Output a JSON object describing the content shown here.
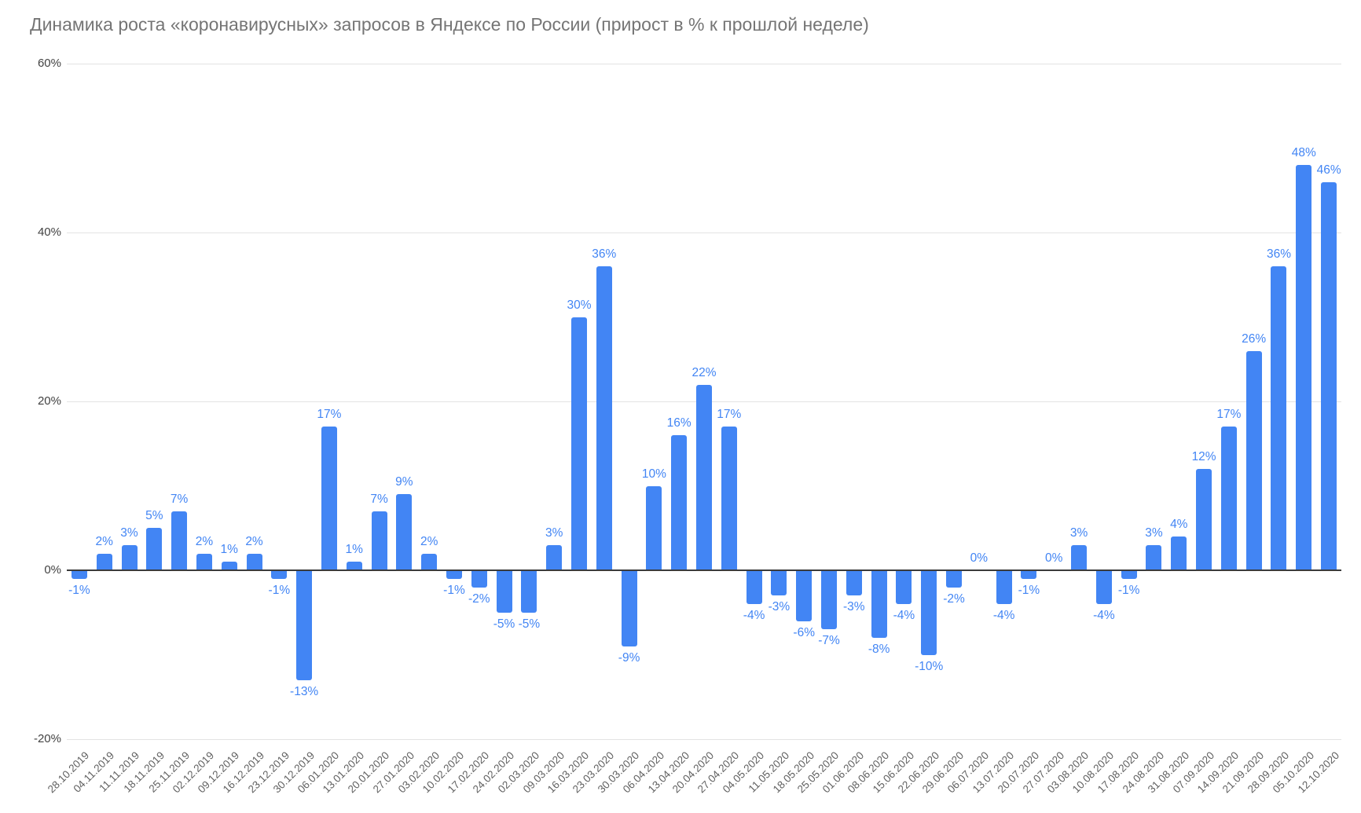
{
  "chart_data": {
    "type": "bar",
    "title": "Динамика роста «коронавирусных» запросов в Яндексе по России (прирост в % к прошлой неделе)",
    "categories": [
      "28.10.2019",
      "04.11.2019",
      "11.11.2019",
      "18.11.2019",
      "25.11.2019",
      "02.12.2019",
      "09.12.2019",
      "16.12.2019",
      "23.12.2019",
      "30.12.2019",
      "06.01.2020",
      "13.01.2020",
      "20.01.2020",
      "27.01.2020",
      "03.02.2020",
      "10.02.2020",
      "17.02.2020",
      "24.02.2020",
      "02.03.2020",
      "09.03.2020",
      "16.03.2020",
      "23.03.2020",
      "30.03.2020",
      "06.04.2020",
      "13.04.2020",
      "20.04.2020",
      "27.04.2020",
      "04.05.2020",
      "11.05.2020",
      "18.05.2020",
      "25.05.2020",
      "01.06.2020",
      "08.06.2020",
      "15.06.2020",
      "22.06.2020",
      "29.06.2020",
      "06.07.2020",
      "13.07.2020",
      "20.07.2020",
      "27.07.2020",
      "03.08.2020",
      "10.08.2020",
      "17.08.2020",
      "24.08.2020",
      "31.08.2020",
      "07.09.2020",
      "14.09.2020",
      "21.09.2020",
      "28.09.2020",
      "05.10.2020",
      "12.10.2020"
    ],
    "values": [
      -1,
      2,
      3,
      5,
      7,
      2,
      1,
      2,
      -1,
      -13,
      17,
      1,
      7,
      9,
      2,
      -1,
      -2,
      -5,
      -5,
      3,
      30,
      36,
      -9,
      10,
      16,
      22,
      17,
      -4,
      -3,
      -6,
      -7,
      -3,
      -8,
      -4,
      -10,
      -2,
      0,
      -4,
      -1,
      0,
      3,
      -4,
      -1,
      3,
      4,
      12,
      17,
      26,
      36,
      48,
      46
    ],
    "labels": [
      "-1%",
      "2%",
      "3%",
      "5%",
      "7%",
      "2%",
      "1%",
      "2%",
      "-1%",
      "-13%",
      "17%",
      "1%",
      "7%",
      "9%",
      "2%",
      "-1%",
      "-2%",
      "-5%",
      "-5%",
      "3%",
      "30%",
      "36%",
      "-9%",
      "10%",
      "16%",
      "22%",
      "17%",
      "-4%",
      "-3%",
      "-6%",
      "-7%",
      "-3%",
      "-8%",
      "-4%",
      "-10%",
      "-2%",
      "0%",
      "-4%",
      "-1%",
      "0%",
      "3%",
      "-4%",
      "-1%",
      "3%",
      "4%",
      "12%",
      "17%",
      "26%",
      "36%",
      "48%",
      "46%"
    ],
    "xlabel": "",
    "ylabel": "",
    "ylim": [
      -20,
      60
    ],
    "yticks": [
      {
        "value": 60,
        "label": "60%"
      },
      {
        "value": 40,
        "label": "40%"
      },
      {
        "value": 20,
        "label": "20%"
      },
      {
        "value": 0,
        "label": "0%"
      },
      {
        "value": -20,
        "label": "-20%"
      }
    ],
    "grid": true,
    "legend": "none",
    "bar_color": "#4285f4",
    "value_label_color": "#4285f4",
    "y_axis_text_color": "#424242",
    "x_axis_text_color": "#616161",
    "title_color": "#757575"
  }
}
